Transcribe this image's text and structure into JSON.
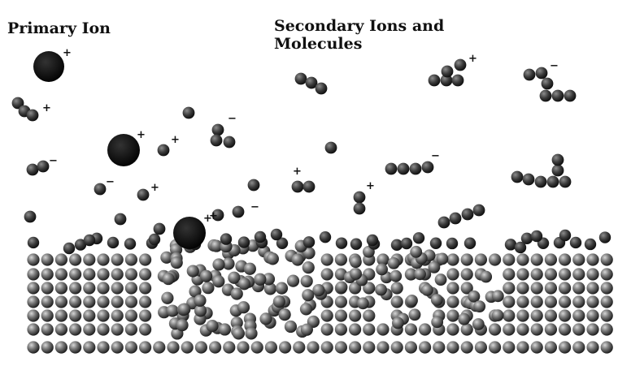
{
  "labels": {
    "primary": "Primary Ion",
    "secondary_line1": "Secondary Ions and",
    "secondary_line2": "Molecules"
  },
  "tiny_caption": "",
  "colors": {
    "atom_dark": "#1a1a1a",
    "atom_mid": "#6b6b6b",
    "atom_light": "#b8b8b8",
    "ion": "#050505",
    "text": "#111111"
  },
  "charges": {
    "plus": "+",
    "minus": "−"
  }
}
